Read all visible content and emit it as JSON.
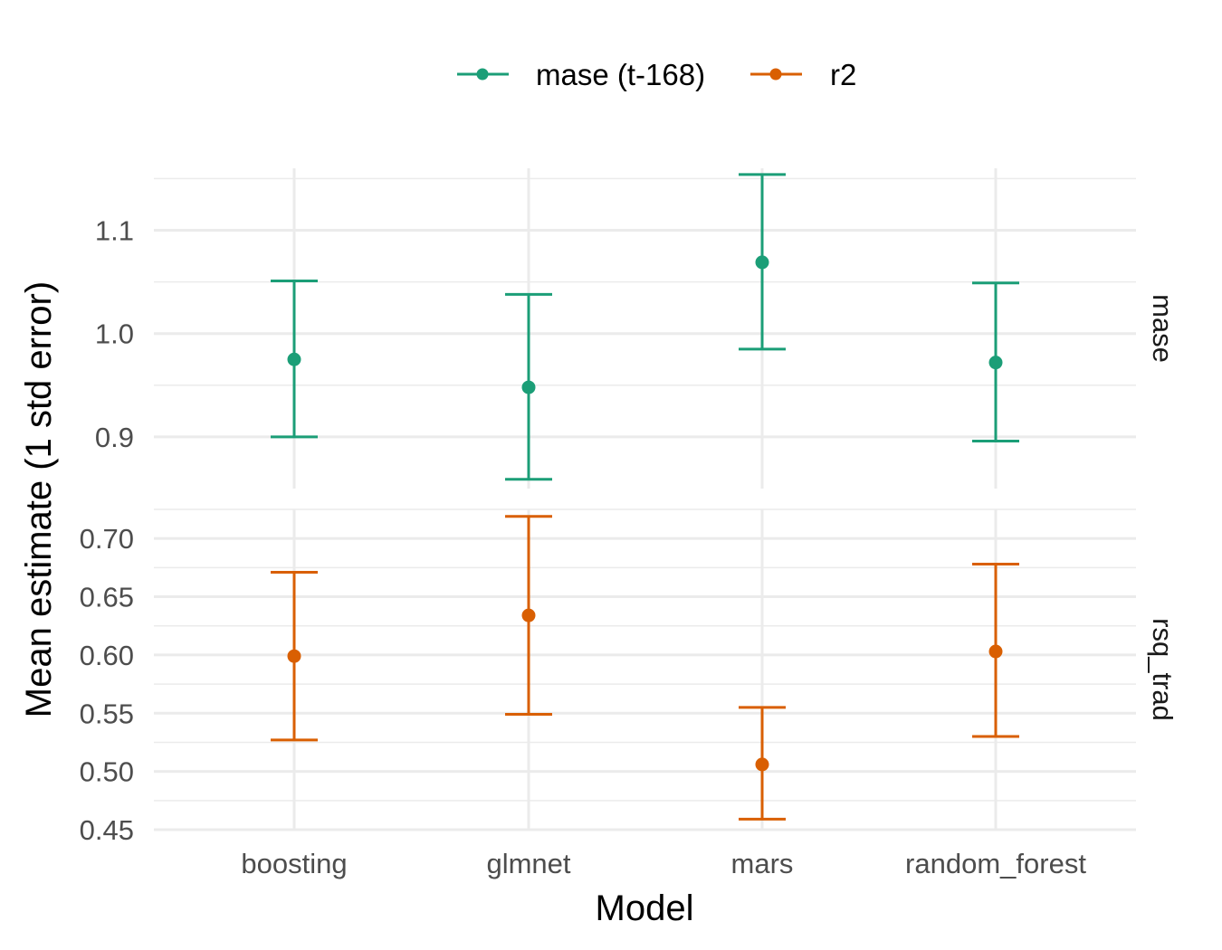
{
  "chart_data": {
    "type": "errorbar",
    "xlabel": "Model",
    "ylabel": "Mean estimate (1 std error)",
    "categories": [
      "boosting",
      "glmnet",
      "mars",
      "random_forest"
    ],
    "legend": {
      "placement": "top",
      "entries": [
        {
          "label": "mase (t-168)",
          "color": "#1b9e77"
        },
        {
          "label": "r2",
          "color": "#d95f02"
        }
      ]
    },
    "grid": true,
    "panels": [
      {
        "strip": "mase",
        "series": "mase (t-168)",
        "color": "#1b9e77",
        "ylim": [
          0.85,
          1.16
        ],
        "yticks": [
          0.9,
          1.0,
          1.1
        ],
        "ytick_labels": [
          "0.9",
          "1.0",
          "1.1"
        ],
        "minor_yticks": [
          0.95,
          1.05,
          1.15
        ],
        "mean": [
          0.975,
          0.948,
          1.069,
          0.972
        ],
        "lower": [
          0.9,
          0.859,
          0.985,
          0.896
        ],
        "upper": [
          1.051,
          1.038,
          1.154,
          1.049
        ]
      },
      {
        "strip": "rsq_trad",
        "series": "r2",
        "color": "#d95f02",
        "ylim": [
          0.45,
          0.725
        ],
        "yticks": [
          0.45,
          0.5,
          0.55,
          0.6,
          0.65,
          0.7
        ],
        "ytick_labels": [
          "0.45",
          "0.50",
          "0.55",
          "0.60",
          "0.65",
          "0.70"
        ],
        "minor_yticks": [
          0.475,
          0.525,
          0.575,
          0.625,
          0.675,
          0.725
        ],
        "mean": [
          0.599,
          0.634,
          0.506,
          0.603
        ],
        "lower": [
          0.527,
          0.549,
          0.459,
          0.53
        ],
        "upper": [
          0.671,
          0.719,
          0.555,
          0.678
        ]
      }
    ]
  }
}
